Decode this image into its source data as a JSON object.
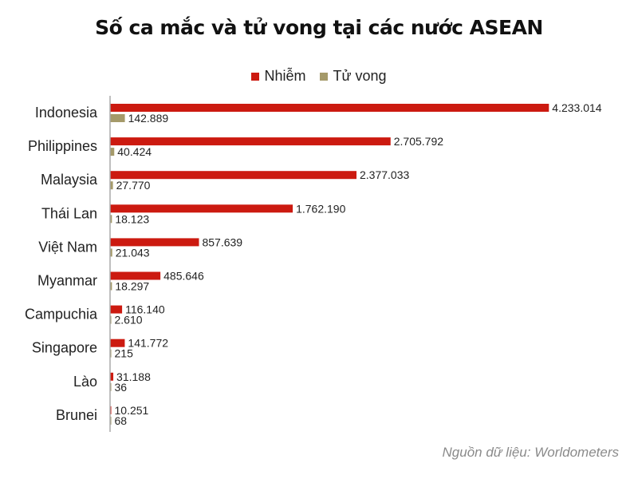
{
  "chart_data": {
    "type": "bar",
    "orientation": "horizontal",
    "title": "Số ca mắc và tử vong tại các nước ASEAN",
    "categories": [
      "Indonesia",
      "Philippines",
      "Malaysia",
      "Thái Lan",
      "Việt Nam",
      "Myanmar",
      "Campuchia",
      "Singapore",
      "Lào",
      "Brunei"
    ],
    "series": [
      {
        "name": "Nhiễm",
        "color": "#cc1a10",
        "values": [
          4233014,
          2705792,
          2377033,
          1762190,
          857639,
          485646,
          116140,
          141772,
          31188,
          10251
        ],
        "labels": [
          "4.233.014",
          "2.705.792",
          "2.377.033",
          "1.762.190",
          "857.639",
          "485.646",
          "116.140",
          "141.772",
          "31.188",
          "10.251"
        ]
      },
      {
        "name": "Tử vong",
        "color": "#a59a6a",
        "values": [
          142889,
          40424,
          27770,
          18123,
          21043,
          18297,
          2610,
          215,
          36,
          68
        ],
        "labels": [
          "142.889",
          "40.424",
          "27.770",
          "18.123",
          "21.043",
          "18.297",
          "2.610",
          "215",
          "36",
          "68"
        ]
      }
    ],
    "xlim": [
      0,
      4500000
    ],
    "grid": false,
    "legend_position": "top"
  },
  "source": "Nguồn dữ liệu: Worldometers"
}
